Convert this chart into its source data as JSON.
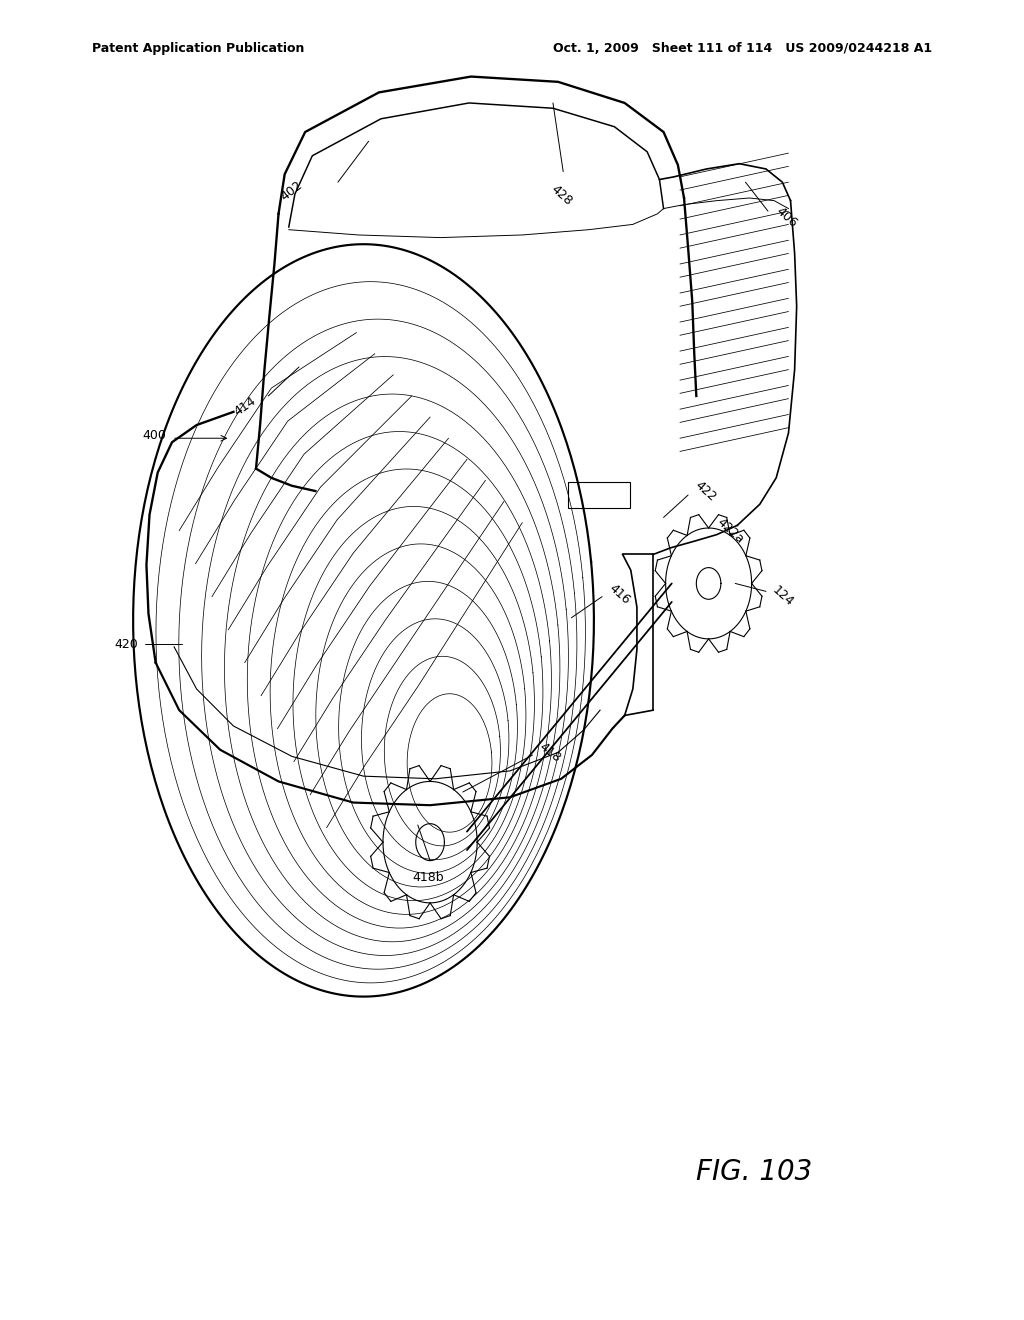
{
  "header_left": "Patent Application Publication",
  "header_right": "Oct. 1, 2009   Sheet 111 of 114   US 2009/0244218 A1",
  "figure_label": "FIG. 103",
  "background_color": "#ffffff",
  "line_color": "#000000"
}
